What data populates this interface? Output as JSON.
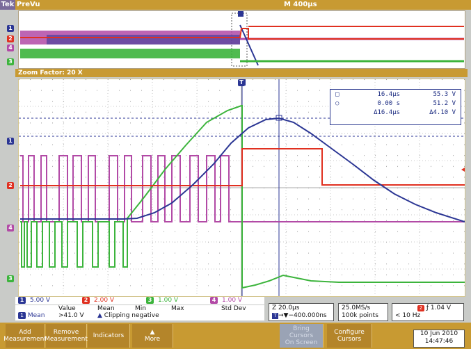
{
  "header": {
    "logo": "Tek",
    "mode": "PreVu",
    "timebase": "M 400µs"
  },
  "zoom": {
    "label": "Zoom Factor: 20 X"
  },
  "channels": {
    "markers": [
      "1",
      "2",
      "4",
      "3"
    ],
    "scales": [
      {
        "id": "1",
        "value": "5.00 V",
        "color": "#2b3694"
      },
      {
        "id": "2",
        "value": "2.00 V",
        "color": "#e03020"
      },
      {
        "id": "3",
        "value": "1.00 V",
        "color": "#3cb43c"
      },
      {
        "id": "4",
        "value": "1.00 V",
        "color": "#b24aa6"
      }
    ]
  },
  "trigger_marker": "T",
  "cursor_readout": {
    "row1": {
      "time": "16.4µs",
      "value": "55.3 V"
    },
    "row2": {
      "time": "0.00 s",
      "value": "51.2 V"
    },
    "row3": {
      "time": "Δ16.4µs",
      "value": "Δ4.10 V"
    }
  },
  "measurements": {
    "headers": {
      "value": "Value",
      "mean": "Mean",
      "min": "Min",
      "max": "Max",
      "std": "Std Dev"
    },
    "row": {
      "channel": "1",
      "type": "Mean",
      "value": ">41.0 V",
      "warning": "Clipping negative"
    }
  },
  "horizontal": {
    "scale": "Z 20.0µs",
    "position": "→▼−400.000ns",
    "trig_badge": "T"
  },
  "acquisition": {
    "rate": "25.0MS/s",
    "points": "100k points"
  },
  "trigger": {
    "channel": "2",
    "slope": "ƒ",
    "level": "1.04 V",
    "freq": "< 10 Hz"
  },
  "buttons": {
    "add": [
      "Add",
      "Measurement"
    ],
    "remove": [
      "Remove",
      "Measurement"
    ],
    "indicators": "Indicators",
    "more_arrow": "▲",
    "more": "More",
    "bring": [
      "Bring",
      "Cursors",
      "On Screen"
    ],
    "configure": [
      "Configure",
      "Cursors"
    ]
  },
  "datetime": {
    "date": "10 Jun 2010",
    "time": "14:47:46"
  },
  "colors": {
    "ch1": "#2b3694",
    "ch2": "#e03020",
    "ch3": "#3cb43c",
    "ch4": "#b24aa6",
    "bar": "#c89a32"
  }
}
